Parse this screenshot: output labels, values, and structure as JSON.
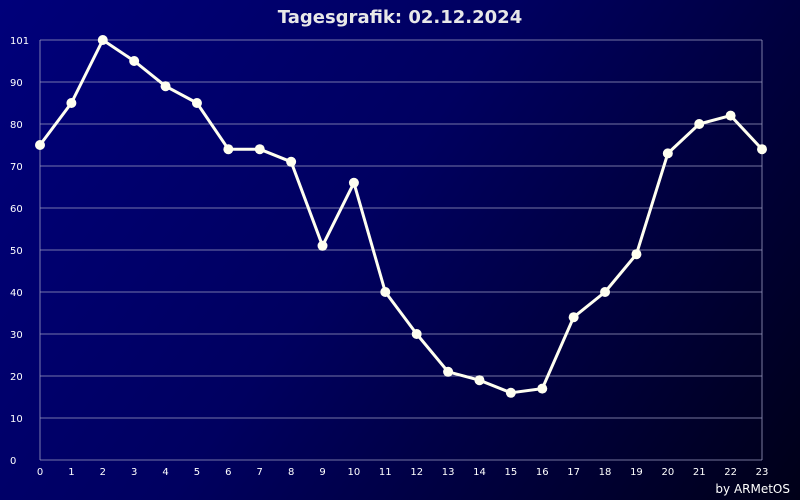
{
  "chart_data": {
    "type": "line",
    "title": "Tagesgrafik: 02.12.2024",
    "xlabel": "",
    "ylabel": "",
    "x": [
      0,
      1,
      2,
      3,
      4,
      5,
      6,
      7,
      8,
      9,
      10,
      11,
      12,
      13,
      14,
      15,
      16,
      17,
      18,
      19,
      20,
      21,
      22,
      23
    ],
    "values": [
      75,
      85,
      100,
      95,
      89,
      85,
      74,
      74,
      71,
      51,
      66,
      40,
      30,
      21,
      19,
      16,
      17,
      34,
      40,
      49,
      73,
      80,
      82,
      74
    ],
    "xlim": [
      0,
      23
    ],
    "ylim": [
      0,
      100
    ],
    "yticks": [
      0,
      10,
      20,
      30,
      40,
      50,
      60,
      70,
      80,
      90,
      101
    ],
    "grid": true,
    "line_color": "#fffff0",
    "marker_color": "#fffff0",
    "grid_color": "#9a9ac0",
    "credit": "by ARMetOS"
  }
}
